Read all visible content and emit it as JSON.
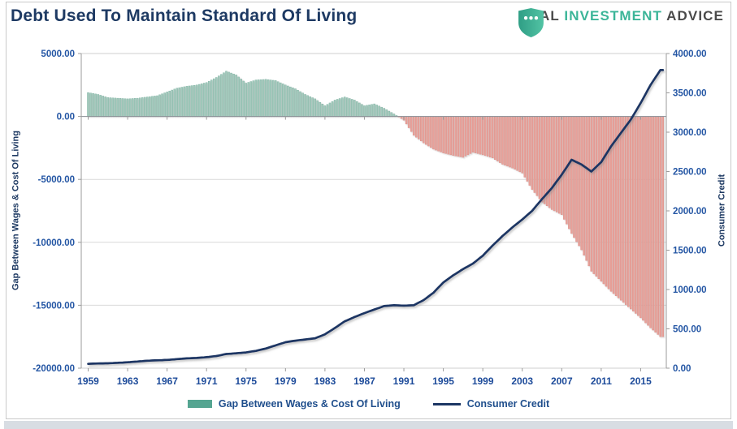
{
  "logo": {
    "word1": "REAL",
    "word2": "INVESTMENT",
    "word3": "ADVICE"
  },
  "chart_data": {
    "type": "combo",
    "title": "Debt Used To Maintain Standard Of Living",
    "grid": true,
    "legend_position": "bottom",
    "x_axis": {
      "tick_years": [
        1959,
        1963,
        1967,
        1971,
        1975,
        1979,
        1983,
        1987,
        1991,
        1995,
        1999,
        2003,
        2007,
        2011,
        2015
      ]
    },
    "left_axis": {
      "label": "Gap Between Wages & Cost Of Living",
      "max": 5000,
      "min": -20000,
      "ticks": [
        "5000.00",
        "0.00",
        "-5000.00",
        "-10000.00",
        "-15000.00",
        "-20000.00"
      ]
    },
    "right_axis": {
      "label": "Consumer Credit",
      "max": 4000,
      "min": 0,
      "ticks": [
        "4000.00",
        "3500.00",
        "3000.00",
        "2500.00",
        "2000.00",
        "1500.00",
        "1000.00",
        "500.00",
        "0.00"
      ]
    },
    "years": [
      1959,
      1960,
      1961,
      1962,
      1963,
      1964,
      1965,
      1966,
      1967,
      1968,
      1969,
      1970,
      1971,
      1972,
      1973,
      1974,
      1975,
      1976,
      1977,
      1978,
      1979,
      1980,
      1981,
      1982,
      1983,
      1984,
      1985,
      1986,
      1987,
      1988,
      1989,
      1990,
      1991,
      1992,
      1993,
      1994,
      1995,
      1996,
      1997,
      1998,
      1999,
      2000,
      2001,
      2002,
      2003,
      2004,
      2005,
      2006,
      2007,
      2008,
      2009,
      2010,
      2011,
      2012,
      2013,
      2014,
      2015,
      2016,
      2017
    ],
    "series": [
      {
        "name": "Gap Between Wages & Cost Of Living",
        "type": "bar",
        "axis": "left",
        "values": [
          1900,
          1750,
          1500,
          1450,
          1400,
          1450,
          1550,
          1650,
          1950,
          2250,
          2400,
          2500,
          2700,
          3100,
          3600,
          3300,
          2650,
          2900,
          2950,
          2850,
          2500,
          2200,
          1750,
          1400,
          850,
          1300,
          1550,
          1300,
          850,
          1000,
          650,
          200,
          -300,
          -1500,
          -2100,
          -2600,
          -2900,
          -3100,
          -3250,
          -2850,
          -3050,
          -3300,
          -3800,
          -4100,
          -4500,
          -5800,
          -6800,
          -7400,
          -7800,
          -9300,
          -10600,
          -12300,
          -13100,
          -13900,
          -14600,
          -15300,
          -16000,
          -16800,
          -17500
        ]
      },
      {
        "name": "Consumer Credit",
        "type": "line",
        "axis": "right",
        "values": [
          55,
          60,
          62,
          68,
          75,
          85,
          95,
          100,
          105,
          115,
          125,
          130,
          140,
          155,
          180,
          190,
          200,
          220,
          250,
          290,
          330,
          350,
          365,
          380,
          430,
          510,
          595,
          650,
          700,
          745,
          790,
          800,
          795,
          800,
          865,
          960,
          1090,
          1180,
          1260,
          1330,
          1430,
          1560,
          1680,
          1790,
          1890,
          2000,
          2150,
          2290,
          2460,
          2650,
          2590,
          2500,
          2620,
          2820,
          2990,
          3160,
          3370,
          3600,
          3790
        ]
      }
    ],
    "colors": {
      "bar_positive": "#a3cabd",
      "bar_positive_edge": "#79af9e",
      "bar_negative": "#e8a19a",
      "bar_negative_edge": "#d88a82",
      "line": "#1c3664",
      "legend_bar_swatch": "#55a591",
      "grid": "#d9d9d9",
      "axis": "#9b9b9b",
      "zero_axis": "#8a8f96",
      "tick_label": "#2456a4",
      "x_tick_label": "#1d4b9a",
      "title": "#1e3a63",
      "logo_teal": "#3bb598",
      "logo_dark": "#4a4a4a"
    }
  }
}
